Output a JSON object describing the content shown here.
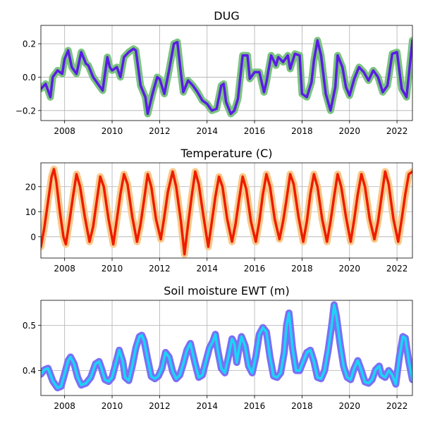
{
  "chart_data": [
    {
      "type": "line",
      "title": "DUG",
      "xlabel": "",
      "ylabel": "",
      "xlim": [
        2007.0,
        2022.65
      ],
      "ylim": [
        -0.26,
        0.31
      ],
      "grid": true,
      "xticks": [
        2008,
        2010,
        2012,
        2014,
        2016,
        2018,
        2020,
        2022
      ],
      "xtick_labels": [
        "2008",
        "2010",
        "2012",
        "2014",
        "2016",
        "2018",
        "2020",
        "2022"
      ],
      "yticks": [
        -0.2,
        0.0,
        0.2
      ],
      "ytick_labels": [
        "−0.2",
        "0.0",
        "0.2"
      ],
      "colors": {
        "band": "#7bc47f",
        "line": "#5b1be6"
      },
      "series": [
        {
          "x": [
            2007.0,
            2007.2,
            2007.4,
            2007.5,
            2007.7,
            2007.9,
            2008.0,
            2008.15,
            2008.3,
            2008.5,
            2008.7,
            2008.9,
            2009.0,
            2009.2,
            2009.4,
            2009.6,
            2009.8,
            2009.9,
            2010.0,
            2010.2,
            2010.35,
            2010.5,
            2010.7,
            2010.9,
            2011.0,
            2011.2,
            2011.4,
            2011.5,
            2011.7,
            2011.9,
            2012.0,
            2012.2,
            2012.4,
            2012.6,
            2012.75,
            2012.9,
            2013.0,
            2013.2,
            2013.4,
            2013.6,
            2013.8,
            2014.0,
            2014.2,
            2014.4,
            2014.6,
            2014.7,
            2014.8,
            2015.0,
            2015.15,
            2015.3,
            2015.5,
            2015.7,
            2015.8,
            2016.0,
            2016.2,
            2016.4,
            2016.5,
            2016.7,
            2016.9,
            2017.0,
            2017.2,
            2017.4,
            2017.5,
            2017.7,
            2017.9,
            2018.0,
            2018.2,
            2018.4,
            2018.5,
            2018.65,
            2018.8,
            2019.0,
            2019.2,
            2019.4,
            2019.5,
            2019.7,
            2019.85,
            2020.0,
            2020.2,
            2020.4,
            2020.6,
            2020.8,
            2021.0,
            2021.2,
            2021.4,
            2021.6,
            2021.8,
            2022.0,
            2022.2,
            2022.4,
            2022.6,
            2022.65
          ],
          "y": [
            -0.07,
            -0.04,
            -0.12,
            0.0,
            0.04,
            0.02,
            0.11,
            0.16,
            0.06,
            0.02,
            0.15,
            0.08,
            0.07,
            0.0,
            -0.04,
            -0.08,
            0.12,
            0.06,
            0.04,
            0.06,
            0.0,
            0.12,
            0.15,
            0.17,
            0.16,
            -0.05,
            -0.12,
            -0.22,
            -0.1,
            0.0,
            -0.01,
            -0.1,
            0.04,
            0.2,
            0.21,
            0.02,
            -0.09,
            -0.02,
            -0.05,
            -0.09,
            -0.14,
            -0.16,
            -0.2,
            -0.19,
            -0.05,
            -0.04,
            -0.15,
            -0.22,
            -0.2,
            -0.13,
            0.13,
            0.13,
            -0.01,
            0.03,
            0.03,
            -0.09,
            -0.03,
            0.13,
            0.07,
            0.12,
            0.09,
            0.13,
            0.05,
            0.14,
            0.13,
            -0.1,
            -0.12,
            -0.03,
            0.1,
            0.22,
            0.13,
            -0.1,
            -0.2,
            -0.06,
            0.13,
            0.06,
            -0.06,
            -0.11,
            -0.01,
            0.06,
            0.03,
            -0.02,
            0.04,
            0.0,
            -0.09,
            -0.05,
            0.14,
            0.15,
            -0.07,
            -0.12,
            0.15,
            0.22
          ]
        }
      ]
    },
    {
      "type": "line",
      "title": "Temperature (C)",
      "xlabel": "",
      "ylabel": "",
      "xlim": [
        2007.0,
        2022.65
      ],
      "ylim": [
        -8.5,
        29.5
      ],
      "grid": true,
      "xticks": [
        2008,
        2010,
        2012,
        2014,
        2016,
        2018,
        2020,
        2022
      ],
      "xtick_labels": [
        "2008",
        "2010",
        "2012",
        "2014",
        "2016",
        "2018",
        "2020",
        "2022"
      ],
      "yticks": [
        0,
        10,
        20
      ],
      "ytick_labels": [
        "0",
        "10",
        "20"
      ],
      "colors": {
        "band": "#f9c98a",
        "line": "#ee1c00"
      },
      "series": [
        {
          "x": [
            2007.0,
            2007.15,
            2007.3,
            2007.45,
            2007.55,
            2007.65,
            2007.8,
            2007.95,
            2008.05,
            2008.2,
            2008.35,
            2008.5,
            2008.65,
            2008.85,
            2009.05,
            2009.2,
            2009.35,
            2009.5,
            2009.65,
            2009.85,
            2010.05,
            2010.2,
            2010.35,
            2010.5,
            2010.65,
            2010.85,
            2011.05,
            2011.2,
            2011.35,
            2011.5,
            2011.65,
            2011.85,
            2012.05,
            2012.2,
            2012.35,
            2012.55,
            2012.7,
            2012.9,
            2013.05,
            2013.2,
            2013.35,
            2013.5,
            2013.65,
            2013.85,
            2014.05,
            2014.2,
            2014.35,
            2014.5,
            2014.65,
            2014.85,
            2015.05,
            2015.2,
            2015.35,
            2015.5,
            2015.65,
            2015.85,
            2016.05,
            2016.2,
            2016.35,
            2016.5,
            2016.65,
            2016.85,
            2017.05,
            2017.2,
            2017.35,
            2017.5,
            2017.65,
            2017.85,
            2018.05,
            2018.2,
            2018.35,
            2018.5,
            2018.65,
            2018.85,
            2019.05,
            2019.2,
            2019.35,
            2019.5,
            2019.65,
            2019.85,
            2020.05,
            2020.2,
            2020.35,
            2020.5,
            2020.65,
            2020.85,
            2021.05,
            2021.2,
            2021.35,
            2021.5,
            2021.65,
            2021.85,
            2022.05,
            2022.2,
            2022.35,
            2022.5,
            2022.65
          ],
          "y": [
            -4,
            4,
            14,
            24,
            27,
            22,
            10,
            0,
            -3,
            6,
            16,
            25,
            20,
            8,
            -2,
            4,
            14,
            24,
            20,
            7,
            -3,
            7,
            17,
            25,
            21,
            8,
            -2,
            5,
            15,
            25,
            20,
            7,
            -1,
            8,
            18,
            26,
            20,
            6,
            -7,
            5,
            16,
            26,
            21,
            8,
            -4,
            6,
            16,
            24,
            20,
            7,
            -2,
            5,
            15,
            24,
            19,
            6,
            -2,
            6,
            17,
            25,
            20,
            7,
            -1,
            6,
            15,
            25,
            21,
            8,
            -2,
            6,
            17,
            25,
            20,
            7,
            -2,
            6,
            16,
            25,
            20,
            8,
            -2,
            7,
            17,
            25,
            20,
            7,
            -1,
            6,
            16,
            26,
            21,
            7,
            -2,
            7,
            17,
            25,
            26
          ]
        }
      ]
    },
    {
      "type": "line",
      "title": "Soil moisture EWT (m)",
      "xlabel": "",
      "ylabel": "",
      "xlim": [
        2007.0,
        2022.65
      ],
      "ylim": [
        0.345,
        0.555
      ],
      "grid": true,
      "xticks": [
        2008,
        2010,
        2012,
        2014,
        2016,
        2018,
        2020,
        2022
      ],
      "xtick_labels": [
        "2008",
        "2010",
        "2012",
        "2014",
        "2016",
        "2018",
        "2020",
        "2022"
      ],
      "yticks": [
        0.4,
        0.5
      ],
      "ytick_labels": [
        "0.4",
        "0.5"
      ],
      "colors": {
        "band": "#7b6ff5",
        "line": "#19d6f5"
      },
      "series": [
        {
          "x": [
            2007.0,
            2007.15,
            2007.3,
            2007.5,
            2007.7,
            2007.85,
            2008.0,
            2008.15,
            2008.25,
            2008.4,
            2008.55,
            2008.7,
            2008.9,
            2009.1,
            2009.3,
            2009.45,
            2009.55,
            2009.7,
            2009.85,
            2010.0,
            2010.15,
            2010.3,
            2010.45,
            2010.55,
            2010.7,
            2010.85,
            2011.0,
            2011.15,
            2011.25,
            2011.35,
            2011.5,
            2011.65,
            2011.8,
            2011.95,
            2012.1,
            2012.25,
            2012.4,
            2012.55,
            2012.7,
            2012.85,
            2013.0,
            2013.15,
            2013.3,
            2013.5,
            2013.65,
            2013.8,
            2013.95,
            2014.1,
            2014.25,
            2014.35,
            2014.45,
            2014.6,
            2014.75,
            2014.9,
            2015.05,
            2015.15,
            2015.25,
            2015.35,
            2015.45,
            2015.6,
            2015.75,
            2015.9,
            2016.05,
            2016.2,
            2016.35,
            2016.5,
            2016.65,
            2016.8,
            2016.95,
            2017.1,
            2017.25,
            2017.35,
            2017.45,
            2017.6,
            2017.75,
            2017.9,
            2018.05,
            2018.2,
            2018.35,
            2018.5,
            2018.65,
            2018.8,
            2018.95,
            2019.1,
            2019.25,
            2019.35,
            2019.45,
            2019.6,
            2019.75,
            2019.9,
            2020.05,
            2020.2,
            2020.35,
            2020.5,
            2020.65,
            2020.8,
            2020.95,
            2021.1,
            2021.25,
            2021.35,
            2021.5,
            2021.65,
            2021.8,
            2021.95,
            2022.1,
            2022.25,
            2022.35,
            2022.5,
            2022.65
          ],
          "y": [
            0.392,
            0.402,
            0.405,
            0.377,
            0.362,
            0.365,
            0.393,
            0.422,
            0.43,
            0.415,
            0.385,
            0.368,
            0.372,
            0.385,
            0.415,
            0.42,
            0.405,
            0.38,
            0.376,
            0.385,
            0.415,
            0.445,
            0.42,
            0.385,
            0.378,
            0.41,
            0.45,
            0.475,
            0.478,
            0.465,
            0.425,
            0.387,
            0.382,
            0.388,
            0.405,
            0.44,
            0.43,
            0.398,
            0.382,
            0.39,
            0.415,
            0.445,
            0.46,
            0.415,
            0.385,
            0.39,
            0.42,
            0.45,
            0.465,
            0.48,
            0.445,
            0.405,
            0.395,
            0.43,
            0.47,
            0.46,
            0.418,
            0.45,
            0.475,
            0.455,
            0.41,
            0.395,
            0.43,
            0.48,
            0.495,
            0.485,
            0.43,
            0.388,
            0.385,
            0.395,
            0.44,
            0.5,
            0.527,
            0.45,
            0.4,
            0.4,
            0.42,
            0.44,
            0.445,
            0.42,
            0.385,
            0.382,
            0.4,
            0.445,
            0.5,
            0.545,
            0.52,
            0.46,
            0.41,
            0.385,
            0.38,
            0.405,
            0.422,
            0.4,
            0.375,
            0.372,
            0.38,
            0.402,
            0.41,
            0.39,
            0.385,
            0.4,
            0.39,
            0.37,
            0.43,
            0.475,
            0.472,
            0.42,
            0.38
          ]
        }
      ]
    }
  ]
}
